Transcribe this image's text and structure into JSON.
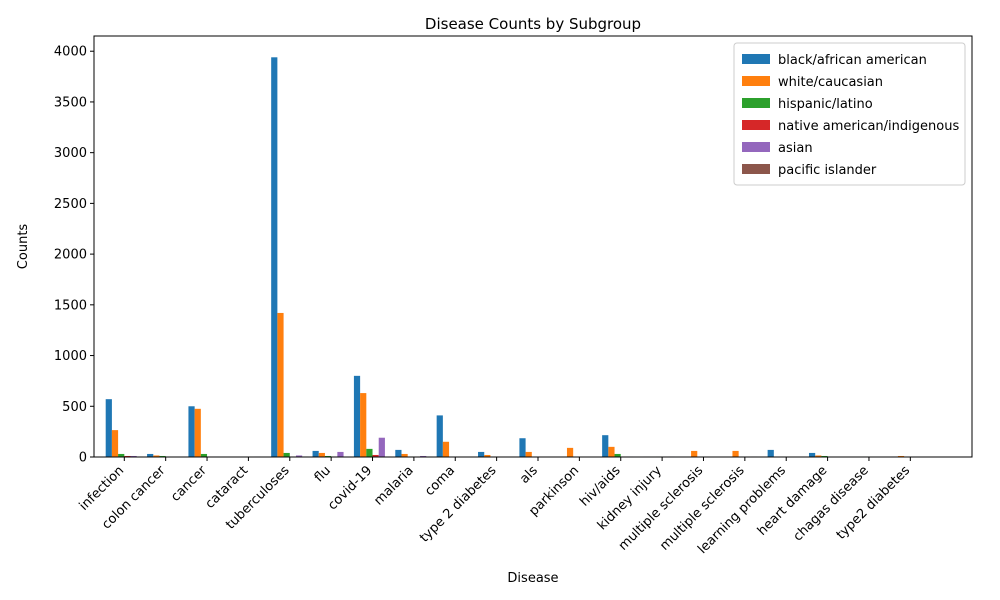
{
  "chart_data": {
    "type": "bar",
    "title": "Disease Counts by Subgroup",
    "xlabel": "Disease",
    "ylabel": "Counts",
    "ylim": [
      0,
      4150
    ],
    "yticks": [
      0,
      500,
      1000,
      1500,
      2000,
      2500,
      3000,
      3500,
      4000
    ],
    "legend_position": "top-right",
    "categories": [
      "infection",
      "colon cancer",
      "cancer",
      "cataract",
      "tuberculoses",
      "flu",
      "covid-19",
      "malaria",
      "coma",
      "type 2 diabetes",
      "als",
      "parkinson",
      "hiv/aids",
      "kidney injury",
      "multiple sclerosis",
      "multiple sclerosis",
      "learning problems",
      "heart damage",
      "chagas disease",
      "type2 diabetes"
    ],
    "series": [
      {
        "name": "black/african american",
        "color": "#1f77b4",
        "values": [
          570,
          30,
          500,
          0,
          3940,
          60,
          800,
          70,
          410,
          50,
          185,
          5,
          215,
          5,
          0,
          0,
          70,
          40,
          0,
          5
        ]
      },
      {
        "name": "white/caucasian",
        "color": "#ff7f0e",
        "values": [
          265,
          15,
          475,
          0,
          1420,
          40,
          630,
          30,
          150,
          20,
          50,
          90,
          100,
          0,
          60,
          60,
          0,
          15,
          0,
          10
        ]
      },
      {
        "name": "hispanic/latino",
        "color": "#2ca02c",
        "values": [
          30,
          10,
          30,
          0,
          40,
          10,
          80,
          5,
          0,
          0,
          0,
          0,
          30,
          5,
          0,
          0,
          0,
          10,
          5,
          0
        ]
      },
      {
        "name": "native american/indigenous",
        "color": "#d62728",
        "values": [
          10,
          0,
          5,
          0,
          5,
          5,
          20,
          5,
          0,
          0,
          0,
          0,
          5,
          0,
          0,
          0,
          0,
          0,
          0,
          0
        ]
      },
      {
        "name": "asian",
        "color": "#9467bd",
        "values": [
          10,
          0,
          5,
          5,
          15,
          50,
          190,
          10,
          0,
          0,
          0,
          0,
          5,
          5,
          0,
          5,
          0,
          0,
          0,
          0
        ]
      },
      {
        "name": "pacific islander",
        "color": "#8c564b",
        "values": [
          5,
          0,
          0,
          0,
          5,
          0,
          5,
          5,
          0,
          0,
          0,
          0,
          0,
          0,
          0,
          0,
          0,
          0,
          0,
          0
        ]
      }
    ]
  }
}
